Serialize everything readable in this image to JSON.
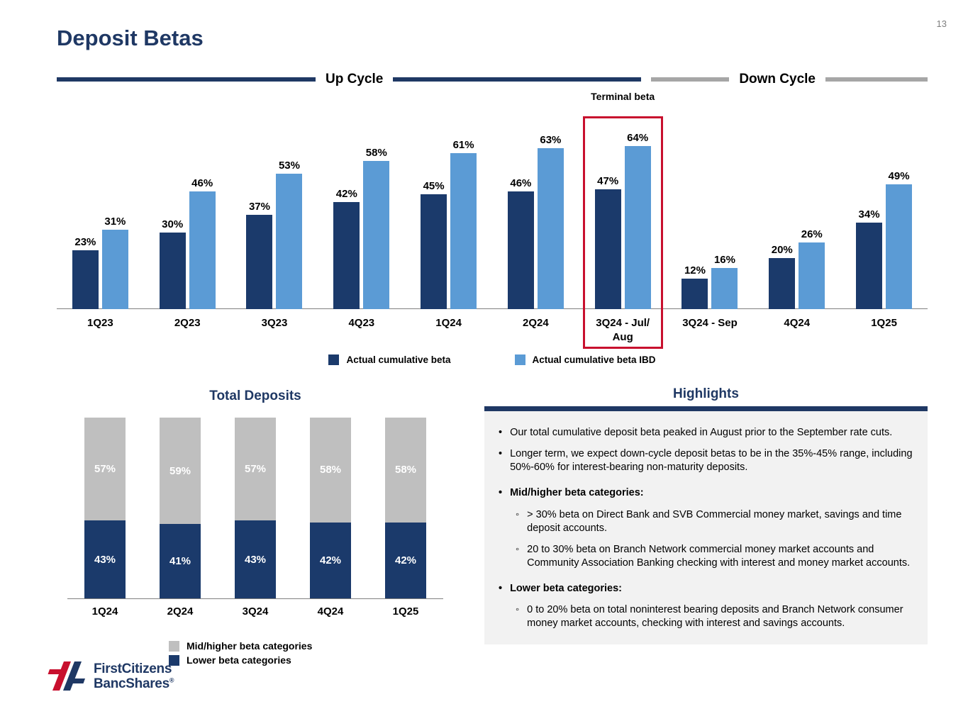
{
  "page": {
    "number": "13",
    "title": "Deposit Betas"
  },
  "colors": {
    "navy": "#1B3A6B",
    "light_blue": "#5B9BD5",
    "gray": "#BFBFBF",
    "title_navy": "#1F3864",
    "red_box": "#C8102E",
    "highlights_bg": "#F2F2F2"
  },
  "cycle_headers": {
    "up": "Up Cycle",
    "down": "Down Cycle"
  },
  "chart_data": [
    {
      "type": "bar",
      "name": "deposit-betas",
      "categories": [
        "1Q23",
        "2Q23",
        "3Q23",
        "4Q23",
        "1Q24",
        "2Q24",
        "3Q24 - Jul/\nAug",
        "3Q24 - Sep",
        "4Q24",
        "1Q25"
      ],
      "series": [
        {
          "name": "Actual cumulative beta",
          "color_key": "navy",
          "values": [
            23,
            30,
            37,
            42,
            45,
            46,
            47,
            12,
            20,
            34
          ]
        },
        {
          "name": "Actual cumulative beta IBD",
          "color_key": "light_blue",
          "values": [
            31,
            46,
            53,
            58,
            61,
            63,
            64,
            16,
            26,
            49
          ]
        }
      ],
      "value_suffix": "%",
      "ylim": [
        0,
        70
      ],
      "grid": false,
      "legend_position": "bottom",
      "annotation": "Terminal beta",
      "highlight_category_index": 6,
      "up_cycle_categories": [
        "1Q23",
        "2Q23",
        "3Q23",
        "4Q23",
        "1Q24",
        "2Q24",
        "3Q24 - Jul/Aug"
      ],
      "down_cycle_categories": [
        "3Q24 - Sep",
        "4Q24",
        "1Q25"
      ]
    },
    {
      "type": "bar",
      "subtype": "stacked",
      "name": "total-deposits",
      "title": "Total Deposits",
      "categories": [
        "1Q24",
        "2Q24",
        "3Q24",
        "4Q24",
        "1Q25"
      ],
      "series": [
        {
          "name": "Lower beta categories",
          "color_key": "navy",
          "values": [
            43,
            41,
            43,
            42,
            42
          ]
        },
        {
          "name": "Mid/higher beta categories",
          "color_key": "gray",
          "values": [
            57,
            59,
            57,
            58,
            58
          ]
        }
      ],
      "value_suffix": "%",
      "ylim": [
        0,
        100
      ],
      "grid": false,
      "legend_position": "bottom"
    }
  ],
  "highlights": {
    "title": "Highlights",
    "items": [
      {
        "level": 1,
        "bold": false,
        "text": "Our total cumulative deposit beta peaked in August prior to the September rate cuts."
      },
      {
        "level": 1,
        "bold": false,
        "text": "Longer term, we expect down-cycle deposit betas to be in the 35%-45% range, including 50%-60% for interest-bearing non-maturity deposits."
      },
      {
        "level": 1,
        "bold": true,
        "text": "Mid/higher beta categories:"
      },
      {
        "level": 2,
        "bold": false,
        "text": "> 30% beta on Direct Bank and SVB Commercial money market, savings and time deposit accounts."
      },
      {
        "level": 2,
        "bold": false,
        "text": "20 to 30% beta on Branch Network commercial money market accounts and Community Association Banking checking with interest and money market accounts."
      },
      {
        "level": 1,
        "bold": true,
        "text": "Lower beta categories:"
      },
      {
        "level": 2,
        "bold": false,
        "text": "0 to 20% beta on total noninterest bearing deposits and Branch Network consumer money market accounts, checking with interest and savings accounts."
      }
    ]
  },
  "logo": {
    "name_line1": "FirstCitizens",
    "name_line2": "BancShares",
    "registered": "®"
  }
}
